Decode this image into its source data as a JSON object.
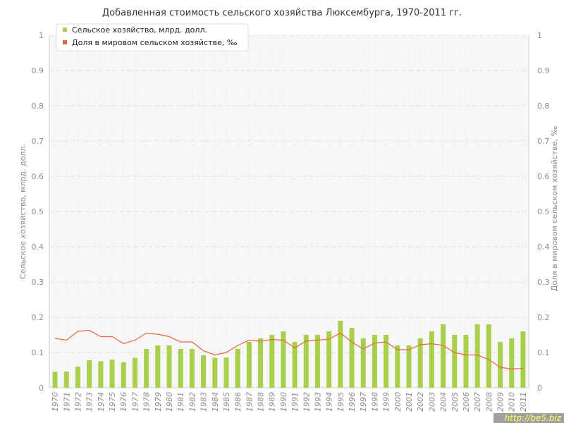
{
  "chart_data": {
    "type": "bar",
    "title": "Добавленная стоимость сельского хозяйства Люксембурга, 1970-2011 гг.",
    "ylabel": "Сельское хозяйство, млрд. долл.",
    "y2label": "Доля в мировом сельском хозяйстве, ‰",
    "ylim": [
      0,
      1
    ],
    "y2lim": [
      0,
      1
    ],
    "yticks": [
      "0",
      "0.1",
      "0.2",
      "0.3",
      "0.4",
      "0.5",
      "0.6",
      "0.7",
      "0.8",
      "0.9",
      "1"
    ],
    "grid": true,
    "legend_position": "top-left",
    "categories": [
      "1970",
      "1971",
      "1972",
      "1973",
      "1974",
      "1975",
      "1976",
      "1977",
      "1978",
      "1979",
      "1980",
      "1981",
      "1982",
      "1983",
      "1984",
      "1985",
      "1986",
      "1987",
      "1988",
      "1989",
      "1990",
      "1991",
      "1992",
      "1993",
      "1994",
      "1995",
      "1996",
      "1997",
      "1998",
      "1999",
      "2000",
      "2001",
      "2002",
      "2003",
      "2004",
      "2005",
      "2006",
      "2007",
      "2008",
      "2009",
      "2010",
      "2011"
    ],
    "series": [
      {
        "name": "Сельское хозяйство, млрд. долл.",
        "type": "bar",
        "axis": "left",
        "color": "#a8d04a",
        "values": [
          0.045,
          0.046,
          0.06,
          0.078,
          0.075,
          0.08,
          0.072,
          0.085,
          0.11,
          0.12,
          0.12,
          0.11,
          0.11,
          0.092,
          0.085,
          0.086,
          0.11,
          0.13,
          0.14,
          0.15,
          0.16,
          0.13,
          0.15,
          0.15,
          0.16,
          0.19,
          0.17,
          0.14,
          0.15,
          0.15,
          0.12,
          0.12,
          0.14,
          0.16,
          0.18,
          0.15,
          0.15,
          0.18,
          0.18,
          0.13,
          0.14,
          0.16
        ]
      },
      {
        "name": "Доля в мировом сельском хозяйстве, ‰",
        "type": "line",
        "axis": "right",
        "color": "#e8693b",
        "values": [
          0.14,
          0.135,
          0.16,
          0.163,
          0.145,
          0.145,
          0.125,
          0.135,
          0.155,
          0.152,
          0.145,
          0.13,
          0.13,
          0.105,
          0.093,
          0.1,
          0.12,
          0.135,
          0.132,
          0.137,
          0.135,
          0.113,
          0.133,
          0.135,
          0.138,
          0.155,
          0.13,
          0.11,
          0.127,
          0.13,
          0.108,
          0.108,
          0.122,
          0.125,
          0.12,
          0.1,
          0.093,
          0.093,
          0.08,
          0.058,
          0.053,
          0.055
        ]
      }
    ]
  },
  "watermark": "http://be5.biz"
}
